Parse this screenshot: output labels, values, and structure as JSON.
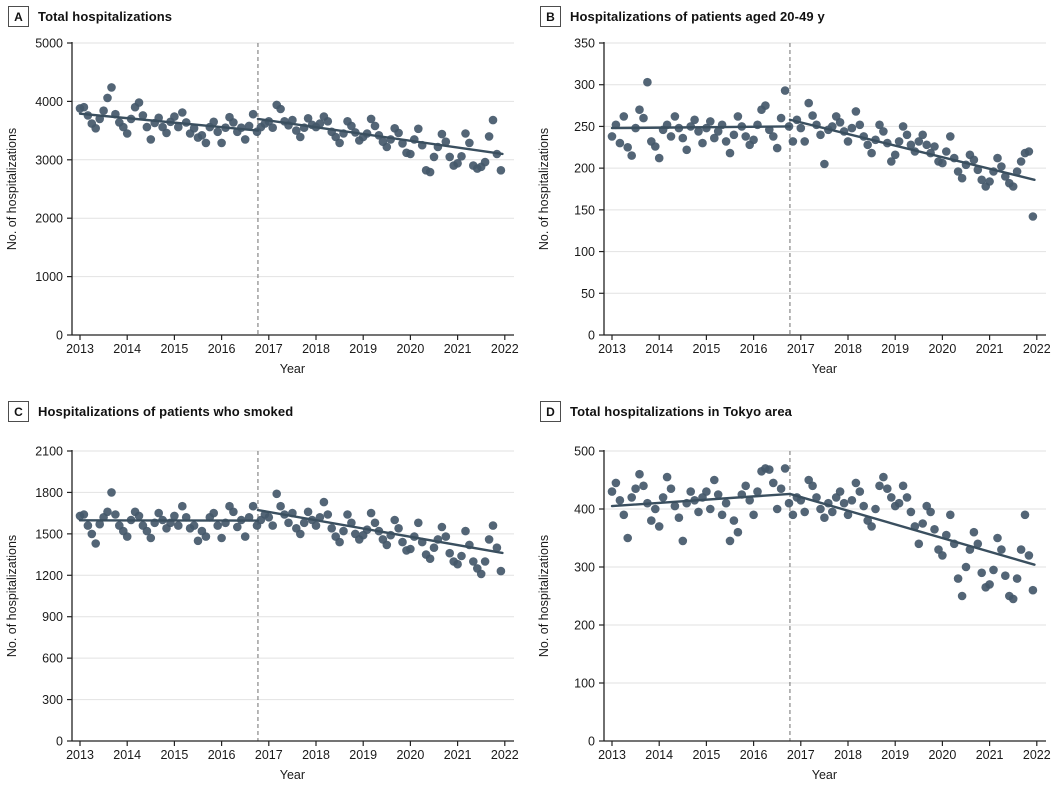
{
  "figure": {
    "xlabel": "Year",
    "ylabel": "No. of hospitalizations",
    "x_ticks": [
      2013,
      2014,
      2015,
      2016,
      2017,
      2018,
      2019,
      2020,
      2021,
      2022
    ],
    "intervention_x": 2016.77,
    "colors": {
      "point": "#44586a",
      "trend_line": "#3a4f5f",
      "gridline": "#e2e2e2",
      "axis": "#222222",
      "dashed_line": "#7d7d7d",
      "text": "#1a1a1a"
    }
  },
  "chart_data": [
    {
      "panel": "A",
      "type": "scatter",
      "title": "Total hospitalizations",
      "xlabel": "Year",
      "ylabel": "No. of hospitalizations",
      "ylim": [
        0,
        5000
      ],
      "yticks": [
        0,
        1000,
        2000,
        3000,
        4000,
        5000
      ],
      "xticks": [
        2013,
        2014,
        2015,
        2016,
        2017,
        2018,
        2019,
        2020,
        2021,
        2022
      ],
      "intervention_x": 2016.77,
      "x_start_year": 2013,
      "points_per_year": 12,
      "values": [
        3880,
        3900,
        3760,
        3620,
        3540,
        3700,
        3840,
        4060,
        4240,
        3780,
        3640,
        3560,
        3450,
        3700,
        3900,
        3980,
        3760,
        3560,
        3350,
        3630,
        3720,
        3560,
        3460,
        3650,
        3740,
        3560,
        3810,
        3640,
        3450,
        3540,
        3380,
        3420,
        3290,
        3560,
        3650,
        3480,
        3290,
        3550,
        3730,
        3640,
        3480,
        3550,
        3350,
        3580,
        3780,
        3480,
        3560,
        3620,
        3660,
        3550,
        3940,
        3870,
        3660,
        3590,
        3680,
        3500,
        3390,
        3550,
        3710,
        3600,
        3560,
        3620,
        3740,
        3660,
        3480,
        3390,
        3290,
        3450,
        3660,
        3580,
        3470,
        3330,
        3390,
        3450,
        3700,
        3580,
        3420,
        3310,
        3220,
        3350,
        3540,
        3460,
        3280,
        3120,
        3100,
        3350,
        3530,
        3250,
        2820,
        2790,
        3050,
        3220,
        3440,
        3310,
        3050,
        2900,
        2940,
        3060,
        3450,
        3290,
        2900,
        2850,
        2880,
        2960,
        3400,
        3680,
        3100,
        2820
      ],
      "trend_segments": [
        {
          "x0": 2013.0,
          "y0": 3790,
          "x1": 2016.77,
          "y1": 3500
        },
        {
          "x0": 2016.77,
          "y0": 3700,
          "x1": 2021.95,
          "y1": 3100
        }
      ]
    },
    {
      "panel": "B",
      "type": "scatter",
      "title": "Hospitalizations of patients aged 20-49 y",
      "xlabel": "Year",
      "ylabel": "No. of hospitalizations",
      "ylim": [
        0,
        350
      ],
      "yticks": [
        0,
        50,
        100,
        150,
        200,
        250,
        300,
        350
      ],
      "xticks": [
        2013,
        2014,
        2015,
        2016,
        2017,
        2018,
        2019,
        2020,
        2021,
        2022
      ],
      "intervention_x": 2016.77,
      "x_start_year": 2013,
      "points_per_year": 12,
      "values": [
        238,
        252,
        230,
        262,
        225,
        215,
        248,
        270,
        260,
        303,
        232,
        226,
        212,
        246,
        252,
        238,
        262,
        248,
        236,
        222,
        250,
        258,
        244,
        230,
        248,
        256,
        236,
        244,
        252,
        232,
        218,
        240,
        262,
        250,
        238,
        228,
        234,
        252,
        270,
        275,
        246,
        238,
        224,
        260,
        293,
        250,
        232,
        258,
        248,
        232,
        278,
        263,
        252,
        240,
        205,
        246,
        250,
        262,
        255,
        244,
        232,
        248,
        268,
        252,
        238,
        228,
        218,
        234,
        252,
        244,
        230,
        208,
        216,
        232,
        250,
        240,
        228,
        220,
        232,
        240,
        228,
        218,
        226,
        208,
        206,
        220,
        238,
        212,
        196,
        188,
        204,
        216,
        210,
        198,
        186,
        178,
        184,
        196,
        212,
        202,
        190,
        182,
        178,
        196,
        208,
        218,
        220,
        142
      ],
      "trend_segments": [
        {
          "x0": 2013.0,
          "y0": 248,
          "x1": 2016.77,
          "y1": 250
        },
        {
          "x0": 2016.77,
          "y0": 258,
          "x1": 2021.95,
          "y1": 186
        }
      ]
    },
    {
      "panel": "C",
      "type": "scatter",
      "title": "Hospitalizations of patients who smoked",
      "xlabel": "Year",
      "ylabel": "No. of hospitalizations",
      "ylim": [
        0,
        2100
      ],
      "yticks": [
        0,
        300,
        600,
        900,
        1200,
        1500,
        1800,
        2100
      ],
      "xticks": [
        2013,
        2014,
        2015,
        2016,
        2017,
        2018,
        2019,
        2020,
        2021,
        2022
      ],
      "intervention_x": 2016.77,
      "x_start_year": 2013,
      "points_per_year": 12,
      "values": [
        1630,
        1640,
        1560,
        1500,
        1430,
        1570,
        1620,
        1660,
        1800,
        1640,
        1560,
        1520,
        1480,
        1600,
        1660,
        1630,
        1560,
        1520,
        1470,
        1580,
        1650,
        1600,
        1540,
        1580,
        1630,
        1560,
        1700,
        1620,
        1540,
        1560,
        1450,
        1520,
        1480,
        1620,
        1650,
        1560,
        1470,
        1580,
        1700,
        1660,
        1550,
        1600,
        1480,
        1620,
        1700,
        1560,
        1600,
        1640,
        1620,
        1560,
        1790,
        1700,
        1640,
        1580,
        1650,
        1540,
        1500,
        1580,
        1660,
        1600,
        1560,
        1620,
        1730,
        1640,
        1540,
        1480,
        1440,
        1520,
        1640,
        1580,
        1500,
        1460,
        1490,
        1530,
        1650,
        1580,
        1520,
        1460,
        1420,
        1490,
        1600,
        1540,
        1440,
        1380,
        1390,
        1480,
        1580,
        1440,
        1350,
        1320,
        1400,
        1460,
        1550,
        1480,
        1360,
        1300,
        1280,
        1340,
        1520,
        1420,
        1300,
        1250,
        1210,
        1300,
        1460,
        1560,
        1400,
        1230
      ],
      "trend_segments": [
        {
          "x0": 2013.0,
          "y0": 1598,
          "x1": 2016.77,
          "y1": 1596
        },
        {
          "x0": 2016.77,
          "y0": 1672,
          "x1": 2021.95,
          "y1": 1362
        }
      ]
    },
    {
      "panel": "D",
      "type": "scatter",
      "title": "Total hospitalizations in Tokyo area",
      "xlabel": "Year",
      "ylabel": "No. of hospitalizations",
      "ylim": [
        0,
        500
      ],
      "yticks": [
        0,
        100,
        200,
        300,
        400,
        500
      ],
      "xticks": [
        2013,
        2014,
        2015,
        2016,
        2017,
        2018,
        2019,
        2020,
        2021,
        2022
      ],
      "intervention_x": 2016.77,
      "x_start_year": 2013,
      "points_per_year": 12,
      "values": [
        430,
        445,
        415,
        390,
        350,
        420,
        435,
        460,
        440,
        410,
        380,
        400,
        370,
        420,
        455,
        435,
        405,
        385,
        345,
        410,
        430,
        415,
        395,
        420,
        430,
        400,
        450,
        425,
        390,
        410,
        345,
        380,
        360,
        425,
        440,
        415,
        390,
        430,
        465,
        470,
        468,
        445,
        400,
        435,
        470,
        410,
        390,
        420,
        415,
        395,
        450,
        440,
        420,
        400,
        385,
        410,
        395,
        420,
        430,
        410,
        390,
        415,
        445,
        430,
        405,
        380,
        370,
        400,
        440,
        455,
        435,
        420,
        405,
        410,
        440,
        420,
        395,
        370,
        340,
        375,
        405,
        395,
        365,
        330,
        320,
        355,
        390,
        340,
        280,
        250,
        300,
        330,
        360,
        340,
        290,
        265,
        270,
        295,
        350,
        330,
        285,
        250,
        245,
        280,
        330,
        390,
        320,
        260
      ],
      "trend_segments": [
        {
          "x0": 2013.0,
          "y0": 405,
          "x1": 2016.77,
          "y1": 426
        },
        {
          "x0": 2016.77,
          "y0": 426,
          "x1": 2021.95,
          "y1": 304
        }
      ]
    }
  ]
}
